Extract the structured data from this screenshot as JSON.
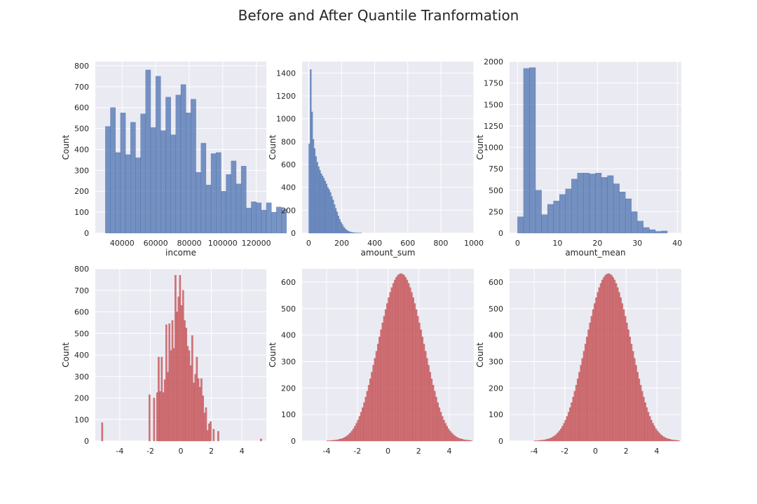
{
  "title": "Before and After Quantile Tranformation",
  "colors": {
    "before": "#4c72b0",
    "after": "#c44e52",
    "panel_bg": "#eaeaf2",
    "grid": "#ffffff"
  },
  "chart_data": [
    {
      "type": "histogram",
      "xlabel": "income",
      "ylabel": "Count",
      "xlim": [
        24000,
        126000
      ],
      "ylim": [
        0,
        820
      ],
      "xticks": [
        40000,
        60000,
        80000,
        100000,
        120000
      ],
      "yticks": [
        0,
        100,
        200,
        300,
        400,
        500,
        600,
        700,
        800
      ],
      "color": "before",
      "bin_start": 30000,
      "bin_width": 3000,
      "counts": [
        510,
        600,
        385,
        575,
        375,
        530,
        360,
        570,
        780,
        505,
        750,
        490,
        650,
        470,
        660,
        710,
        575,
        640,
        290,
        430,
        230,
        380,
        385,
        200,
        280,
        345,
        235,
        320,
        120,
        150,
        145,
        110,
        145,
        100,
        125,
        115
      ]
    },
    {
      "type": "histogram",
      "xlabel": "amount_sum",
      "ylabel": "Count",
      "xlim": [
        -40,
        1000
      ],
      "ylim": [
        0,
        1500
      ],
      "xticks": [
        0,
        200,
        400,
        600,
        800,
        1000
      ],
      "yticks": [
        0,
        200,
        400,
        600,
        800,
        1000,
        1200,
        1400
      ],
      "color": "before",
      "bin_start": 0,
      "bin_width": 8,
      "counts": [
        780,
        1430,
        1060,
        820,
        740,
        670,
        620,
        580,
        550,
        520,
        500,
        480,
        455,
        430,
        400,
        380,
        355,
        320,
        290,
        250,
        215,
        185,
        150,
        120,
        95,
        75,
        55,
        40,
        28,
        20,
        14,
        10,
        7,
        5,
        3,
        2,
        2,
        1,
        1,
        1
      ]
    },
    {
      "type": "histogram",
      "xlabel": "amount_mean",
      "ylabel": "Count",
      "xlim": [
        -2,
        41
      ],
      "ylim": [
        0,
        2000
      ],
      "xticks": [
        0,
        10,
        20,
        30,
        40
      ],
      "yticks": [
        0,
        250,
        500,
        750,
        1000,
        1250,
        1500,
        1750,
        2000
      ],
      "color": "before",
      "bin_start": 0,
      "bin_width": 1.5,
      "counts": [
        190,
        1920,
        1930,
        500,
        215,
        335,
        375,
        450,
        515,
        630,
        700,
        700,
        690,
        700,
        650,
        670,
        575,
        480,
        400,
        250,
        140,
        65,
        40,
        20,
        25
      ]
    },
    {
      "type": "histogram",
      "xlabel": "",
      "ylabel": "Count",
      "xlim": [
        -5.6,
        5.6
      ],
      "ylim": [
        0,
        800
      ],
      "xticks": [
        -4,
        -2,
        0,
        2,
        4
      ],
      "yticks": [
        0,
        100,
        200,
        300,
        400,
        500,
        600,
        700,
        800
      ],
      "color": "after",
      "bin_start": -5.2,
      "bin_width": 0.1,
      "counts": [
        85,
        0,
        0,
        0,
        0,
        0,
        0,
        0,
        0,
        0,
        0,
        0,
        0,
        0,
        0,
        0,
        0,
        0,
        0,
        0,
        0,
        0,
        0,
        0,
        0,
        0,
        0,
        0,
        0,
        0,
        0,
        215,
        0,
        0,
        200,
        0,
        225,
        390,
        230,
        390,
        225,
        285,
        540,
        320,
        545,
        420,
        560,
        430,
        770,
        600,
        670,
        770,
        630,
        700,
        560,
        525,
        440,
        420,
        350,
        490,
        270,
        310,
        390,
        290,
        250,
        290,
        210,
        130,
        155,
        50,
        80,
        90,
        0,
        55,
        0,
        0,
        45,
        0,
        0,
        0,
        0,
        0,
        0,
        0,
        0,
        0,
        0,
        0,
        0,
        0,
        0,
        0,
        0,
        0,
        0,
        0,
        0,
        0,
        0,
        0,
        0,
        0,
        0,
        0,
        10
      ]
    },
    {
      "type": "histogram",
      "xlabel": "",
      "ylabel": "Count",
      "xlim": [
        -5.6,
        5.6
      ],
      "ylim": [
        0,
        650
      ],
      "xticks": [
        -4,
        -2,
        0,
        2,
        4
      ],
      "yticks": [
        0,
        100,
        200,
        300,
        400,
        500,
        600
      ],
      "color": "after",
      "bin_start": -4.0,
      "bin_width": 0.1,
      "counts": [
        1,
        1,
        1,
        2,
        3,
        3,
        4,
        5,
        7,
        8,
        10,
        13,
        16,
        20,
        25,
        31,
        38,
        46,
        56,
        67,
        79,
        93,
        109,
        126,
        145,
        166,
        188,
        211,
        235,
        260,
        286,
        312,
        339,
        366,
        393,
        420,
        446,
        471,
        496,
        519,
        541,
        561,
        579,
        595,
        608,
        618,
        626,
        630,
        632,
        630,
        626,
        618,
        608,
        595,
        579,
        561,
        541,
        519,
        496,
        471,
        446,
        420,
        393,
        366,
        339,
        312,
        286,
        260,
        235,
        211,
        188,
        166,
        145,
        126,
        109,
        93,
        79,
        67,
        56,
        46,
        38,
        31,
        25,
        20,
        16,
        13,
        10,
        8,
        7,
        5,
        4,
        3,
        3,
        2,
        1
      ]
    },
    {
      "type": "histogram",
      "xlabel": "",
      "ylabel": "Count",
      "xlim": [
        -5.6,
        5.6
      ],
      "ylim": [
        0,
        650
      ],
      "xticks": [
        -4,
        -2,
        0,
        2,
        4
      ],
      "yticks": [
        0,
        100,
        200,
        300,
        400,
        500,
        600
      ],
      "color": "after",
      "bin_start": -4.0,
      "bin_width": 0.1,
      "counts": [
        1,
        1,
        1,
        2,
        3,
        3,
        4,
        5,
        7,
        8,
        10,
        13,
        16,
        20,
        25,
        31,
        38,
        46,
        56,
        67,
        79,
        93,
        109,
        126,
        145,
        166,
        188,
        211,
        235,
        260,
        286,
        312,
        339,
        366,
        393,
        420,
        446,
        471,
        496,
        519,
        541,
        561,
        579,
        595,
        608,
        618,
        626,
        630,
        632,
        630,
        626,
        618,
        608,
        595,
        579,
        561,
        541,
        519,
        496,
        471,
        446,
        420,
        393,
        366,
        339,
        312,
        286,
        260,
        235,
        211,
        188,
        166,
        145,
        126,
        109,
        93,
        79,
        67,
        56,
        46,
        38,
        31,
        25,
        20,
        16,
        13,
        10,
        8,
        7,
        5,
        4,
        3,
        3,
        2,
        1
      ]
    }
  ]
}
